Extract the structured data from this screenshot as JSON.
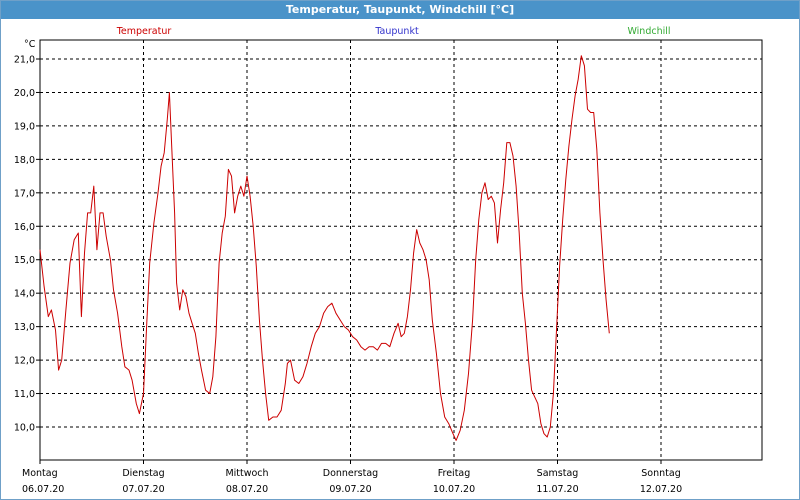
{
  "window": {
    "title": "Temperatur, Taupunkt, Windchill [°C]"
  },
  "chart_data": {
    "type": "line",
    "title": "Temperatur, Taupunkt, Windchill [°C]",
    "ylabel": "°C",
    "ylim": [
      9.5,
      21.5
    ],
    "xlim": [
      0,
      7
    ],
    "grid": true,
    "legend_placement": "top",
    "y_ticks": [
      "21,0",
      "20,0",
      "19,0",
      "18,0",
      "17,0",
      "16,0",
      "15,0",
      "14,0",
      "13,0",
      "12,0",
      "11,0",
      "10,0"
    ],
    "y_tick_values": [
      21,
      20,
      19,
      18,
      17,
      16,
      15,
      14,
      13,
      12,
      11,
      10
    ],
    "x_ticks": [
      {
        "day": "Montag",
        "date": "06.07.20"
      },
      {
        "day": "Dienstag",
        "date": "07.07.20"
      },
      {
        "day": "Mittwoch",
        "date": "08.07.20"
      },
      {
        "day": "Donnerstag",
        "date": "09.07.20"
      },
      {
        "day": "Freitag",
        "date": "10.07.20"
      },
      {
        "day": "Samstag",
        "date": "11.07.20"
      },
      {
        "day": "Sonntag",
        "date": "12.07.20"
      }
    ],
    "series": [
      {
        "name": "Temperatur",
        "color": "#cc0000",
        "points": [
          [
            0.0,
            15.3
          ],
          [
            0.04,
            14.2
          ],
          [
            0.08,
            13.3
          ],
          [
            0.11,
            13.5
          ],
          [
            0.15,
            12.9
          ],
          [
            0.18,
            11.7
          ],
          [
            0.21,
            12.0
          ],
          [
            0.25,
            13.5
          ],
          [
            0.29,
            14.9
          ],
          [
            0.33,
            15.6
          ],
          [
            0.37,
            15.8
          ],
          [
            0.4,
            13.3
          ],
          [
            0.43,
            15.2
          ],
          [
            0.46,
            16.4
          ],
          [
            0.49,
            16.4
          ],
          [
            0.52,
            17.2
          ],
          [
            0.55,
            15.3
          ],
          [
            0.58,
            16.4
          ],
          [
            0.61,
            16.4
          ],
          [
            0.64,
            15.7
          ],
          [
            0.68,
            15.0
          ],
          [
            0.71,
            14.1
          ],
          [
            0.75,
            13.4
          ],
          [
            0.79,
            12.4
          ],
          [
            0.82,
            11.8
          ],
          [
            0.86,
            11.7
          ],
          [
            0.89,
            11.4
          ],
          [
            0.93,
            10.7
          ],
          [
            0.96,
            10.4
          ],
          [
            1.0,
            11.0
          ],
          [
            1.03,
            13.0
          ],
          [
            1.06,
            14.9
          ],
          [
            1.1,
            16.1
          ],
          [
            1.14,
            17.0
          ],
          [
            1.17,
            17.8
          ],
          [
            1.2,
            18.2
          ],
          [
            1.23,
            19.2
          ],
          [
            1.25,
            20.0
          ],
          [
            1.27,
            18.6
          ],
          [
            1.3,
            16.4
          ],
          [
            1.32,
            14.3
          ],
          [
            1.35,
            13.5
          ],
          [
            1.38,
            14.1
          ],
          [
            1.41,
            13.9
          ],
          [
            1.44,
            13.4
          ],
          [
            1.47,
            13.1
          ],
          [
            1.5,
            12.8
          ],
          [
            1.53,
            12.2
          ],
          [
            1.56,
            11.7
          ],
          [
            1.6,
            11.1
          ],
          [
            1.64,
            11.0
          ],
          [
            1.67,
            11.5
          ],
          [
            1.7,
            12.7
          ],
          [
            1.73,
            14.9
          ],
          [
            1.76,
            15.8
          ],
          [
            1.79,
            16.3
          ],
          [
            1.82,
            17.7
          ],
          [
            1.85,
            17.5
          ],
          [
            1.88,
            16.4
          ],
          [
            1.91,
            16.9
          ],
          [
            1.94,
            17.2
          ],
          [
            1.97,
            16.9
          ],
          [
            2.0,
            17.5
          ],
          [
            2.03,
            16.9
          ],
          [
            2.06,
            16.0
          ],
          [
            2.09,
            14.8
          ],
          [
            2.12,
            13.2
          ],
          [
            2.15,
            12.0
          ],
          [
            2.18,
            11.0
          ],
          [
            2.21,
            10.2
          ],
          [
            2.25,
            10.3
          ],
          [
            2.29,
            10.3
          ],
          [
            2.33,
            10.5
          ],
          [
            2.37,
            11.3
          ],
          [
            2.39,
            11.9
          ],
          [
            2.42,
            12.0
          ],
          [
            2.46,
            11.4
          ],
          [
            2.5,
            11.3
          ],
          [
            2.54,
            11.5
          ],
          [
            2.58,
            11.9
          ],
          [
            2.62,
            12.4
          ],
          [
            2.66,
            12.8
          ],
          [
            2.7,
            13.0
          ],
          [
            2.74,
            13.4
          ],
          [
            2.78,
            13.6
          ],
          [
            2.82,
            13.7
          ],
          [
            2.86,
            13.4
          ],
          [
            2.9,
            13.2
          ],
          [
            2.94,
            13.0
          ],
          [
            2.98,
            12.9
          ],
          [
            3.02,
            12.7
          ],
          [
            3.06,
            12.6
          ],
          [
            3.1,
            12.4
          ],
          [
            3.14,
            12.3
          ],
          [
            3.18,
            12.4
          ],
          [
            3.22,
            12.4
          ],
          [
            3.26,
            12.3
          ],
          [
            3.3,
            12.5
          ],
          [
            3.34,
            12.5
          ],
          [
            3.38,
            12.4
          ],
          [
            3.42,
            12.8
          ],
          [
            3.46,
            13.1
          ],
          [
            3.49,
            12.7
          ],
          [
            3.52,
            12.8
          ],
          [
            3.55,
            13.3
          ],
          [
            3.58,
            14.1
          ],
          [
            3.61,
            15.2
          ],
          [
            3.64,
            15.9
          ],
          [
            3.67,
            15.5
          ],
          [
            3.7,
            15.3
          ],
          [
            3.73,
            15.0
          ],
          [
            3.76,
            14.4
          ],
          [
            3.79,
            13.2
          ],
          [
            3.83,
            12.2
          ],
          [
            3.87,
            11.0
          ],
          [
            3.91,
            10.3
          ],
          [
            3.95,
            10.1
          ],
          [
            3.99,
            9.8
          ],
          [
            4.02,
            9.6
          ],
          [
            4.06,
            9.9
          ],
          [
            4.1,
            10.5
          ],
          [
            4.14,
            11.6
          ],
          [
            4.18,
            13.2
          ],
          [
            4.21,
            15.0
          ],
          [
            4.24,
            16.2
          ],
          [
            4.27,
            17.0
          ],
          [
            4.3,
            17.3
          ],
          [
            4.33,
            16.8
          ],
          [
            4.36,
            16.9
          ],
          [
            4.39,
            16.7
          ],
          [
            4.42,
            15.5
          ],
          [
            4.45,
            16.5
          ],
          [
            4.48,
            17.3
          ],
          [
            4.51,
            18.5
          ],
          [
            4.54,
            18.5
          ],
          [
            4.57,
            18.1
          ],
          [
            4.6,
            17.2
          ],
          [
            4.63,
            15.8
          ],
          [
            4.66,
            14.0
          ],
          [
            4.69,
            13.1
          ],
          [
            4.72,
            12.0
          ],
          [
            4.75,
            11.1
          ],
          [
            4.78,
            10.9
          ],
          [
            4.81,
            10.7
          ],
          [
            4.84,
            10.1
          ],
          [
            4.87,
            9.8
          ],
          [
            4.9,
            9.7
          ],
          [
            4.93,
            10.0
          ],
          [
            4.96,
            11.0
          ],
          [
            4.99,
            12.9
          ],
          [
            5.02,
            14.8
          ],
          [
            5.05,
            16.2
          ],
          [
            5.08,
            17.4
          ],
          [
            5.11,
            18.4
          ],
          [
            5.14,
            19.2
          ],
          [
            5.17,
            19.9
          ],
          [
            5.2,
            20.4
          ],
          [
            5.23,
            21.1
          ],
          [
            5.26,
            20.8
          ],
          [
            5.29,
            19.5
          ],
          [
            5.32,
            19.4
          ],
          [
            5.35,
            19.4
          ],
          [
            5.38,
            18.3
          ],
          [
            5.41,
            16.4
          ],
          [
            5.44,
            15.0
          ],
          [
            5.47,
            13.8
          ],
          [
            5.5,
            12.8
          ]
        ]
      },
      {
        "name": "Taupunkt",
        "color": "#3333cc",
        "points": []
      },
      {
        "name": "Windchill",
        "color": "#33aa33",
        "points": []
      }
    ]
  }
}
